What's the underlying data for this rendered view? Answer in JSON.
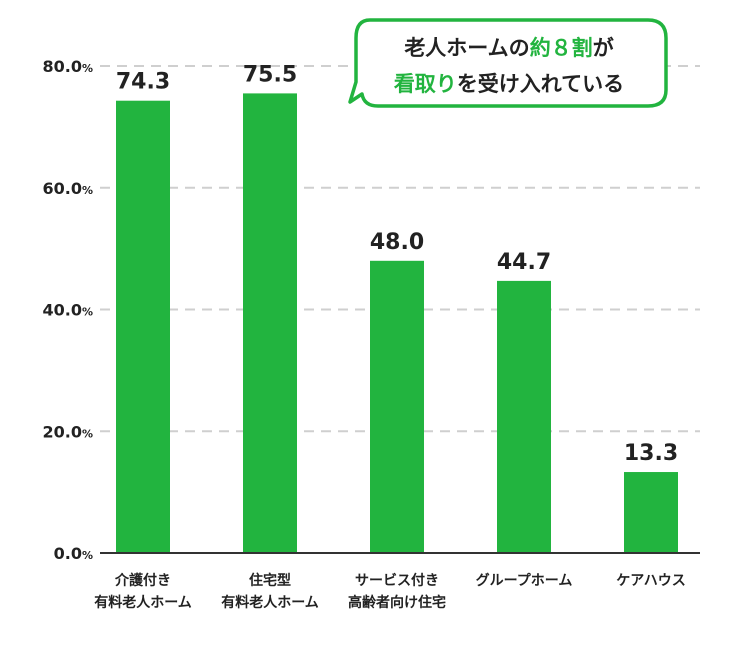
{
  "colors": {
    "bar": "#22b43f",
    "grid": "#cfcfcf",
    "axis": "#333333",
    "text": "#222222"
  },
  "chart_data": {
    "type": "bar",
    "categories": [
      [
        "介護付き",
        "有料老人ホーム"
      ],
      [
        "住宅型",
        "有料老人ホーム"
      ],
      [
        "サービス付き",
        "高齢者向け住宅"
      ],
      [
        "グループホーム"
      ],
      [
        "ケアハウス"
      ]
    ],
    "values": [
      74.3,
      75.5,
      48.0,
      44.7,
      13.3
    ],
    "value_labels": [
      "74.3",
      "75.5",
      "48.0",
      "44.7",
      "13.3"
    ],
    "yticks": [
      {
        "value": 0,
        "label": "0.0",
        "unit": "%"
      },
      {
        "value": 20,
        "label": "20.0",
        "unit": "%"
      },
      {
        "value": 40,
        "label": "40.0",
        "unit": "%"
      },
      {
        "value": 60,
        "label": "60.0",
        "unit": "%"
      },
      {
        "value": 80,
        "label": "80.0",
        "unit": "%"
      }
    ],
    "ylim": [
      0,
      80
    ],
    "grid": true,
    "title": "",
    "xlabel": "",
    "ylabel": ""
  },
  "callout": {
    "line1": {
      "pre": "老人ホームの",
      "highlight": "約８割",
      "post": "が"
    },
    "line2": {
      "highlight": "看取り",
      "post": "を受け入れている"
    }
  }
}
